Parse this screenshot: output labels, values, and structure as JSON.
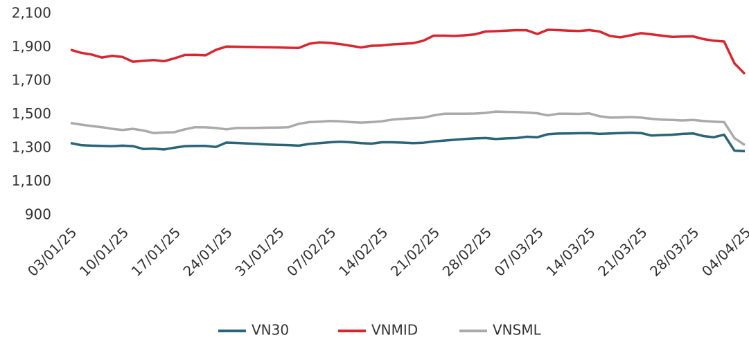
{
  "chart_data": {
    "type": "line",
    "categories": [
      "03/01/25",
      null,
      null,
      null,
      null,
      "10/01/25",
      null,
      null,
      null,
      null,
      "17/01/25",
      null,
      null,
      null,
      null,
      "24/01/25",
      null,
      null,
      null,
      null,
      "31/01/25",
      null,
      null,
      null,
      null,
      "07/02/25",
      null,
      null,
      null,
      null,
      "14/02/25",
      null,
      null,
      null,
      null,
      "21/02/25",
      null,
      null,
      null,
      null,
      "28/02/25",
      null,
      null,
      null,
      null,
      "07/03/25",
      null,
      null,
      null,
      null,
      "14/03/25",
      null,
      null,
      null,
      null,
      "21/03/25",
      null,
      null,
      null,
      null,
      "28/03/25",
      null,
      null,
      null,
      null,
      "04/04/25"
    ],
    "series": [
      {
        "name": "VN30",
        "color": "#2a6478",
        "values": [
          1330,
          1318,
          1315,
          1313,
          1312,
          1315,
          1312,
          1295,
          1297,
          1292,
          1303,
          1312,
          1313,
          1313,
          1307,
          1333,
          1331,
          1328,
          1325,
          1322,
          1320,
          1318,
          1315,
          1325,
          1330,
          1335,
          1338,
          1335,
          1330,
          1327,
          1335,
          1335,
          1333,
          1330,
          1332,
          1340,
          1345,
          1350,
          1355,
          1358,
          1360,
          1355,
          1358,
          1360,
          1368,
          1365,
          1383,
          1387,
          1388,
          1389,
          1390,
          1385,
          1388,
          1390,
          1392,
          1390,
          1375,
          1378,
          1380,
          1385,
          1388,
          1372,
          1365,
          1380,
          1285,
          1282
        ]
      },
      {
        "name": "VNMID",
        "color": "#d7262f",
        "values": [
          1886,
          1868,
          1858,
          1840,
          1850,
          1843,
          1815,
          1820,
          1825,
          1818,
          1835,
          1855,
          1856,
          1853,
          1885,
          1905,
          1904,
          1903,
          1902,
          1901,
          1900,
          1898,
          1897,
          1922,
          1930,
          1927,
          1920,
          1910,
          1900,
          1910,
          1912,
          1918,
          1922,
          1925,
          1940,
          1970,
          1970,
          1968,
          1972,
          1978,
          1995,
          1997,
          2000,
          2003,
          2002,
          1980,
          2005,
          2003,
          2000,
          1998,
          2003,
          1995,
          1968,
          1960,
          1972,
          1985,
          1978,
          1970,
          1963,
          1965,
          1966,
          1950,
          1940,
          1935,
          1805,
          1742
        ]
      },
      {
        "name": "VNSML",
        "color": "#aaaaaa",
        "values": [
          1450,
          1440,
          1432,
          1425,
          1415,
          1408,
          1415,
          1405,
          1390,
          1393,
          1395,
          1412,
          1425,
          1424,
          1420,
          1412,
          1420,
          1420,
          1421,
          1422,
          1423,
          1425,
          1445,
          1455,
          1458,
          1462,
          1460,
          1455,
          1452,
          1455,
          1460,
          1470,
          1475,
          1478,
          1482,
          1495,
          1505,
          1505,
          1505,
          1506,
          1510,
          1518,
          1516,
          1515,
          1512,
          1508,
          1495,
          1505,
          1505,
          1504,
          1507,
          1490,
          1482,
          1483,
          1485,
          1482,
          1475,
          1470,
          1468,
          1465,
          1468,
          1462,
          1458,
          1455,
          1360,
          1318
        ]
      }
    ],
    "ylim": [
      900,
      2100
    ],
    "yticks": [
      900,
      {
        "value": 1100,
        "label": "1,100"
      },
      {
        "value": 1300,
        "label": "1,300"
      },
      {
        "value": 1500,
        "label": "1,500"
      },
      {
        "value": 1700,
        "label": "1,700"
      },
      {
        "value": 1900,
        "label": "1,900"
      },
      {
        "value": 2100,
        "label": "2,100"
      }
    ],
    "grid": false,
    "legend": "bottom"
  }
}
